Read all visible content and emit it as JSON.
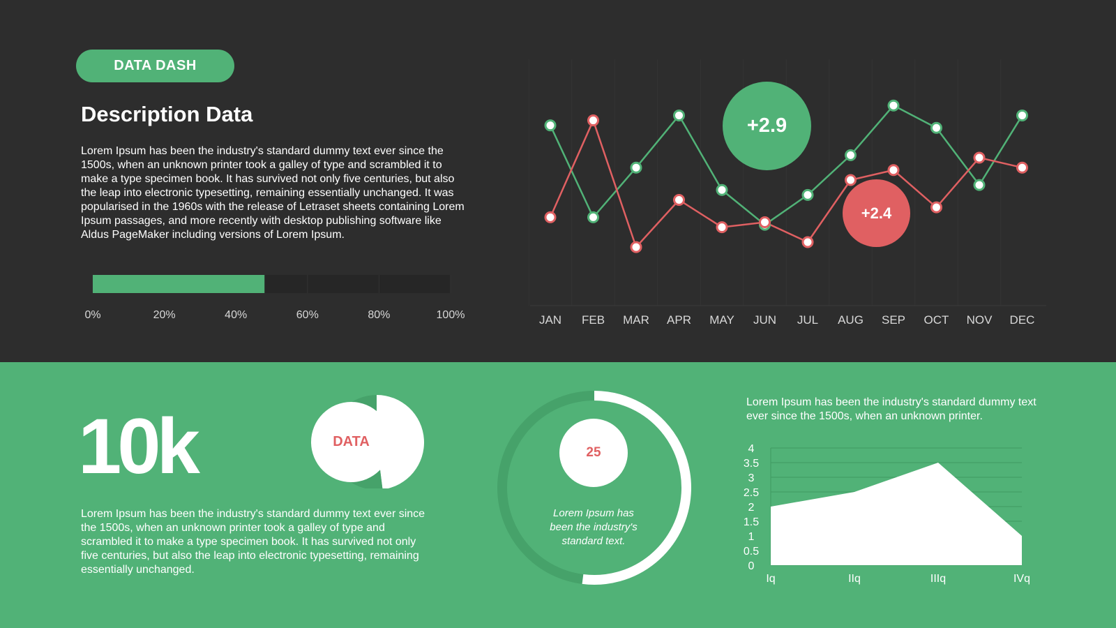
{
  "header": {
    "badge": "DATA DASH",
    "title": "Description Data",
    "description": "Lorem Ipsum has been the industry's standard dummy text ever since the 1500s, when an unknown printer took a galley of type and scrambled it to make a type specimen book.  It has survived not only five centuries, but also the leap into electronic typesetting, remaining essentially unchanged. It was popularised in the 1960s with the release of Letraset sheets containing Lorem Ipsum passages, and more recently with desktop publishing software like Aldus PageMaker including versions of Lorem Ipsum."
  },
  "colors": {
    "green": "#51b277",
    "red": "#e06062",
    "dark": "#2d2d2d",
    "white": "#ffffff"
  },
  "stats": {
    "big_number": "10k",
    "description": "Lorem Ipsum has been the industry's standard dummy text ever since the 1500s, when an unknown printer took a galley of type and scrambled it to make a type specimen book.  It has survived not only five centuries, but also the leap into electronic typesetting, remaining essentially unchanged.",
    "pie_label": "DATA",
    "ring_value": "25",
    "ring_text": "Lorem Ipsum has been the industry's standard text.",
    "area_description": "Lorem Ipsum has been the industry's standard dummy text ever since the 1500s, when an unknown printer."
  },
  "chart_data": [
    {
      "type": "bar",
      "orientation": "horizontal",
      "values": [
        48
      ],
      "ticks": [
        "0%",
        "20%",
        "40%",
        "60%",
        "80%",
        "100%"
      ],
      "xlim": [
        0,
        100
      ]
    },
    {
      "type": "line",
      "categories": [
        "JAN",
        "FEB",
        "MAR",
        "APR",
        "MAY",
        "JUN",
        "JUL",
        "AUG",
        "SEP",
        "OCT",
        "NOV",
        "DEC"
      ],
      "series": [
        {
          "color": "#51b277",
          "values": [
            7.2,
            3.5,
            5.5,
            7.6,
            4.6,
            3.2,
            4.4,
            6.0,
            8.0,
            7.1,
            4.8,
            7.6
          ]
        },
        {
          "color": "#e06062",
          "values": [
            3.5,
            7.4,
            2.3,
            4.2,
            3.1,
            3.3,
            2.5,
            5.0,
            5.4,
            3.9,
            5.9,
            5.5
          ]
        }
      ],
      "annotations": [
        {
          "text": "+2.9",
          "color": "#51b277"
        },
        {
          "text": "+2.4",
          "color": "#e06062"
        }
      ],
      "ylim": [
        0,
        10
      ],
      "grid": true
    },
    {
      "type": "pie",
      "slices": [
        {
          "label": "DATA",
          "value": 48,
          "color": "#ffffff"
        },
        {
          "value": 52,
          "color": "#46a26a"
        }
      ]
    },
    {
      "type": "pie",
      "style": "ring",
      "value": 25,
      "progress": 0.52
    },
    {
      "type": "area",
      "categories": [
        "Iq",
        "IIq",
        "IIIq",
        "IVq"
      ],
      "values": [
        2.0,
        2.5,
        3.5,
        1.0
      ],
      "yticks": [
        "0",
        "0.5",
        "1",
        "1.5",
        "2",
        "2.5",
        "3",
        "3.5",
        "4"
      ],
      "ylim": [
        0,
        4
      ],
      "grid": true
    }
  ]
}
